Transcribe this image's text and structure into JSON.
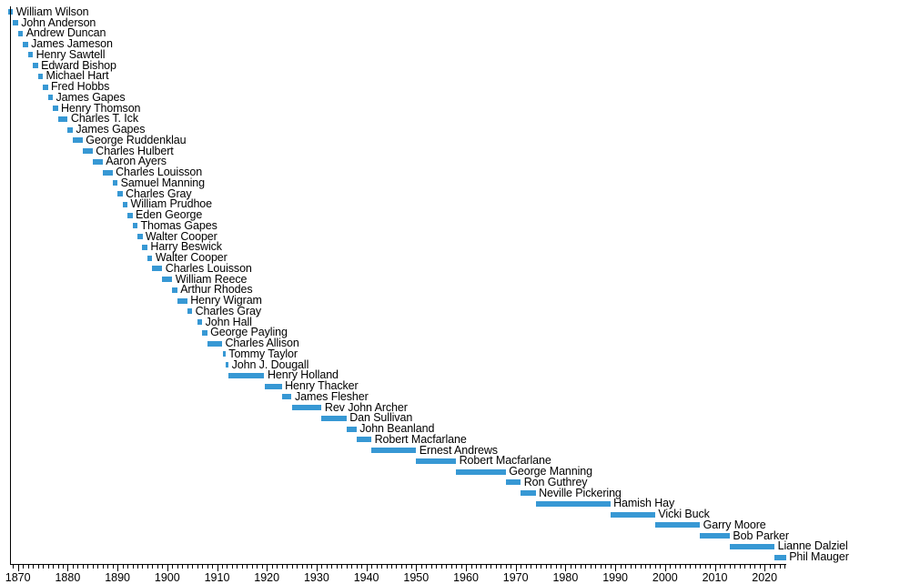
{
  "chart_data": {
    "type": "bar",
    "variant": "horizontal-timeline",
    "title": "",
    "xlabel": "",
    "ylabel": "",
    "legend": "none",
    "grid": "off",
    "bar_color": "#3798d4",
    "axis_color": "#000000",
    "text_color": "#000000",
    "background_color": "#ffffff",
    "x_axis": {
      "min": 1867.6,
      "max": 2024.5,
      "minor_tick_step": 1,
      "major_tick_step": 10,
      "tick_labels": [
        "1870",
        "1880",
        "1890",
        "1900",
        "1910",
        "1920",
        "1930",
        "1940",
        "1950",
        "1960",
        "1970",
        "1980",
        "1990",
        "2000",
        "2010",
        "2020"
      ]
    },
    "series": [
      {
        "name": "William Wilson",
        "start": 1868,
        "end": 1869
      },
      {
        "name": "John Anderson",
        "start": 1869,
        "end": 1870
      },
      {
        "name": "Andrew Duncan",
        "start": 1870,
        "end": 1871
      },
      {
        "name": "James Jameson",
        "start": 1871,
        "end": 1872
      },
      {
        "name": "Henry Sawtell",
        "start": 1872,
        "end": 1873
      },
      {
        "name": "Edward Bishop",
        "start": 1873,
        "end": 1874
      },
      {
        "name": "Michael Hart",
        "start": 1874,
        "end": 1875
      },
      {
        "name": "Fred Hobbs",
        "start": 1875,
        "end": 1876
      },
      {
        "name": "James Gapes",
        "start": 1876,
        "end": 1877
      },
      {
        "name": "Henry Thomson",
        "start": 1877,
        "end": 1878
      },
      {
        "name": "Charles T. Ick",
        "start": 1878,
        "end": 1880
      },
      {
        "name": "James Gapes",
        "start": 1880,
        "end": 1881
      },
      {
        "name": "George Ruddenklau",
        "start": 1881,
        "end": 1883
      },
      {
        "name": "Charles Hulbert",
        "start": 1883,
        "end": 1885
      },
      {
        "name": "Aaron Ayers",
        "start": 1885,
        "end": 1887
      },
      {
        "name": "Charles Louisson",
        "start": 1887,
        "end": 1889
      },
      {
        "name": "Samuel Manning",
        "start": 1889,
        "end": 1890
      },
      {
        "name": "Charles Gray",
        "start": 1890,
        "end": 1891
      },
      {
        "name": "William Prudhoe",
        "start": 1891,
        "end": 1892
      },
      {
        "name": "Eden George",
        "start": 1892,
        "end": 1893
      },
      {
        "name": "Thomas Gapes",
        "start": 1893,
        "end": 1894
      },
      {
        "name": "Walter Cooper",
        "start": 1894,
        "end": 1895
      },
      {
        "name": "Harry Beswick",
        "start": 1895,
        "end": 1896
      },
      {
        "name": "Walter Cooper",
        "start": 1896,
        "end": 1897
      },
      {
        "name": "Charles Louisson",
        "start": 1897,
        "end": 1899
      },
      {
        "name": "William Reece",
        "start": 1899,
        "end": 1901
      },
      {
        "name": "Arthur Rhodes",
        "start": 1901,
        "end": 1902
      },
      {
        "name": "Henry Wigram",
        "start": 1902,
        "end": 1904
      },
      {
        "name": "Charles Gray",
        "start": 1904,
        "end": 1905
      },
      {
        "name": "John Hall",
        "start": 1906,
        "end": 1907
      },
      {
        "name": "George Payling",
        "start": 1907,
        "end": 1908
      },
      {
        "name": "Charles Allison",
        "start": 1908,
        "end": 1911
      },
      {
        "name": "Tommy Taylor",
        "start": 1911.2,
        "end": 1911.7
      },
      {
        "name": "John J. Dougall",
        "start": 1911.7,
        "end": 1912.3
      },
      {
        "name": "Henry Holland",
        "start": 1912.3,
        "end": 1919.5
      },
      {
        "name": "Henry Thacker",
        "start": 1919.5,
        "end": 1923
      },
      {
        "name": "James Flesher",
        "start": 1923,
        "end": 1925
      },
      {
        "name": "Rev John Archer",
        "start": 1925,
        "end": 1931
      },
      {
        "name": "Dan Sullivan",
        "start": 1931,
        "end": 1936
      },
      {
        "name": "John Beanland",
        "start": 1936,
        "end": 1938
      },
      {
        "name": "Robert Macfarlane",
        "start": 1938,
        "end": 1941
      },
      {
        "name": "Ernest Andrews",
        "start": 1941,
        "end": 1950
      },
      {
        "name": "Robert Macfarlane",
        "start": 1950,
        "end": 1958
      },
      {
        "name": "George Manning",
        "start": 1958,
        "end": 1968
      },
      {
        "name": "Ron Guthrey",
        "start": 1968,
        "end": 1971
      },
      {
        "name": "Neville Pickering",
        "start": 1971,
        "end": 1974
      },
      {
        "name": "Hamish Hay",
        "start": 1974,
        "end": 1989
      },
      {
        "name": "Vicki Buck",
        "start": 1989,
        "end": 1998
      },
      {
        "name": "Garry Moore",
        "start": 1998,
        "end": 2007
      },
      {
        "name": "Bob Parker",
        "start": 2007,
        "end": 2013
      },
      {
        "name": "Lianne Dalziel",
        "start": 2013,
        "end": 2022
      },
      {
        "name": "Phil Mauger",
        "start": 2022,
        "end": 2024.3
      }
    ]
  }
}
